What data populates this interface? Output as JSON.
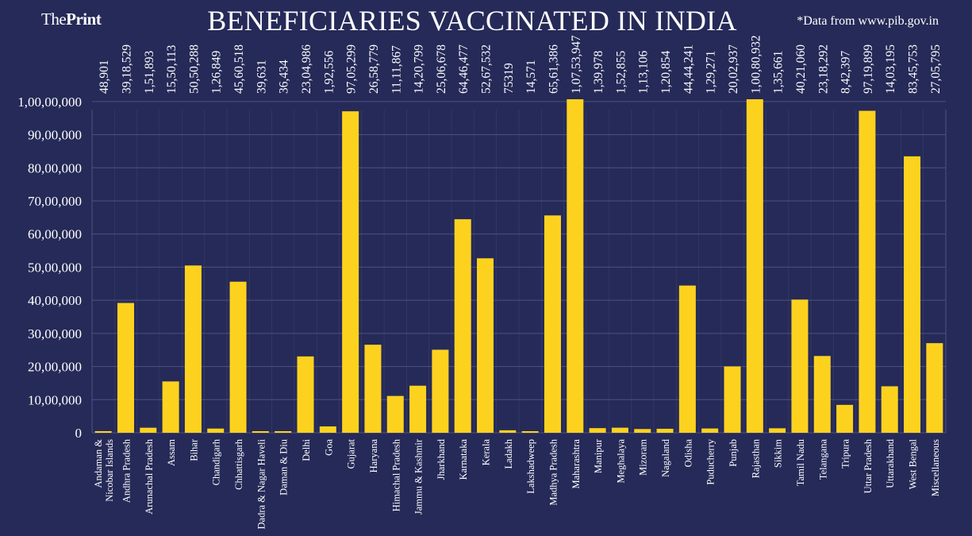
{
  "header": {
    "brand_prefix": "The",
    "brand_bold": "Print",
    "title": "BENEFICIARIES VACCINATED IN INDIA",
    "source_note": "*Data from www.pib.gov.in"
  },
  "colors": {
    "background": "#262a58",
    "bar": "#fdd21f",
    "grid": "#4d5280",
    "text": "#ffffff"
  },
  "chart_data": {
    "type": "bar",
    "title": "BENEFICIARIES VACCINATED IN INDIA",
    "xlabel": "",
    "ylabel": "",
    "ylim": [
      0,
      10500000
    ],
    "grid": true,
    "y_ticks": [
      0,
      1000000,
      2000000,
      3000000,
      4000000,
      5000000,
      6000000,
      7000000,
      8000000,
      9000000,
      10000000
    ],
    "y_tick_labels": [
      "0",
      "10,00,000",
      "20,00,000",
      "30,00,000",
      "40,00,000",
      "50,00,000",
      "60,00,000",
      "70,00,000",
      "80,00,000",
      "90,00,000",
      "1,00,00,000"
    ],
    "categories": [
      [
        "Andaman &",
        "Nicobar Islands"
      ],
      [
        "Andhra Pradesh"
      ],
      [
        "Arunachal Pradesh"
      ],
      [
        "Assam"
      ],
      [
        "Bihar"
      ],
      [
        "Chandigarh"
      ],
      [
        "Chhattisgarh"
      ],
      [
        "Dadra & Nagar Haveli"
      ],
      [
        "Daman & Diu"
      ],
      [
        "Delhi"
      ],
      [
        "Goa"
      ],
      [
        "Gujarat"
      ],
      [
        "Haryana"
      ],
      [
        "Himachal Pradesh"
      ],
      [
        "Jammu & Kashmir"
      ],
      [
        "Jharkhand"
      ],
      [
        "Karnataka"
      ],
      [
        "Kerala"
      ],
      [
        "Ladakh"
      ],
      [
        "Lakshadweep"
      ],
      [
        "Madhya Pradesh"
      ],
      [
        "Maharashtra"
      ],
      [
        "Manipur"
      ],
      [
        "Meghalaya"
      ],
      [
        "Mizoram"
      ],
      [
        "Nagaland"
      ],
      [
        "Odisha"
      ],
      [
        "Puducherry"
      ],
      [
        "Punjab"
      ],
      [
        "Rajasthan"
      ],
      [
        "Sikkim"
      ],
      [
        "Tamil Nadu"
      ],
      [
        "Telangana"
      ],
      [
        "Tripura"
      ],
      [
        "Uttar Pradesh"
      ],
      [
        "Uttarakhand"
      ],
      [
        "West Bengal"
      ],
      [
        "Miscellaneous"
      ]
    ],
    "values": [
      48901,
      3918529,
      151893,
      1550113,
      5050288,
      126849,
      4560518,
      39631,
      36434,
      2304986,
      192556,
      9705299,
      2658779,
      1111867,
      1420799,
      2506678,
      6446477,
      5267532,
      75319,
      14571,
      6561386,
      10753947,
      139978,
      152855,
      113106,
      120854,
      4444241,
      129271,
      2002937,
      10080932,
      135661,
      4021060,
      2318292,
      842397,
      9719899,
      1403195,
      8345753,
      2705795
    ],
    "value_labels": [
      "48,901",
      "39,18,529",
      "1,51,893",
      "15,50,113",
      "50,50,288",
      "1,26,849",
      "45,60,518",
      "39,631",
      "36,434",
      "23,04,986",
      "1,92,556",
      "97,05,299",
      "26,58,779",
      "11,11,867",
      "14,20,799",
      "25,06,678",
      "64,46,477",
      "52,67,532",
      "75319",
      "14,571",
      "65,61,386",
      "1,07,53,947",
      "1,39,978",
      "1,52,855",
      "1,13,106",
      "1,20,854",
      "44,44,241",
      "1,29,271",
      "20,02,937",
      "1,00,80,932",
      "1,35,661",
      "40,21,060",
      "23,18,292",
      "8,42,397",
      "97,19,899",
      "14,03,195",
      "83,45,753",
      "27,05,795"
    ]
  }
}
